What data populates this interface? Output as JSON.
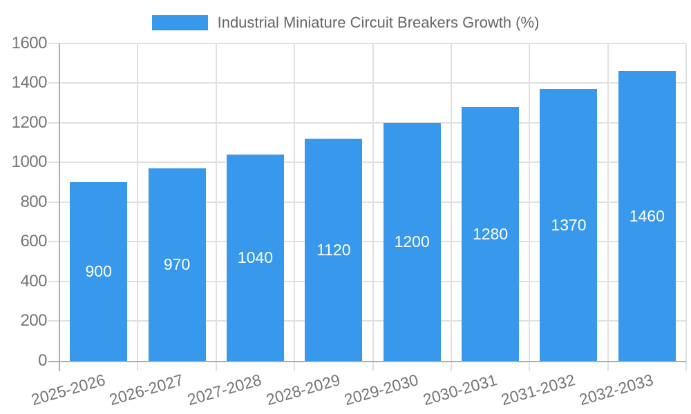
{
  "chart_data": {
    "type": "bar",
    "title": "Industrial Miniature Circuit Breakers Growth (%)",
    "legend": {
      "label": "Industrial Miniature Circuit Breakers Growth (%)",
      "position": "top"
    },
    "categories": [
      "2025-2026",
      "2026-2027",
      "2027-2028",
      "2028-2029",
      "2029-2030",
      "2030-2031",
      "2031-2032",
      "2032-2033"
    ],
    "series": [
      {
        "name": "Industrial Miniature Circuit Breakers Growth (%)",
        "values": [
          900,
          970,
          1040,
          1120,
          1200,
          1280,
          1370,
          1460
        ]
      }
    ],
    "value_labels": [
      "900",
      "970",
      "1040",
      "1120",
      "1200",
      "1280",
      "1370",
      "1460"
    ],
    "xlabel": "",
    "ylabel": "",
    "ylim": [
      0,
      1600
    ],
    "yticks": [
      0,
      200,
      400,
      600,
      800,
      1000,
      1200,
      1400,
      1600
    ],
    "grid": true,
    "x_label_rotation_deg": -16,
    "colors": {
      "bar": "#3898EC",
      "value_label": "#FFFFFF",
      "tick_label": "#757575",
      "legend_text": "#666666",
      "gridline": "#E0E0E0",
      "axis_line": "#ACACAC",
      "background": "#FFFFFF"
    }
  }
}
